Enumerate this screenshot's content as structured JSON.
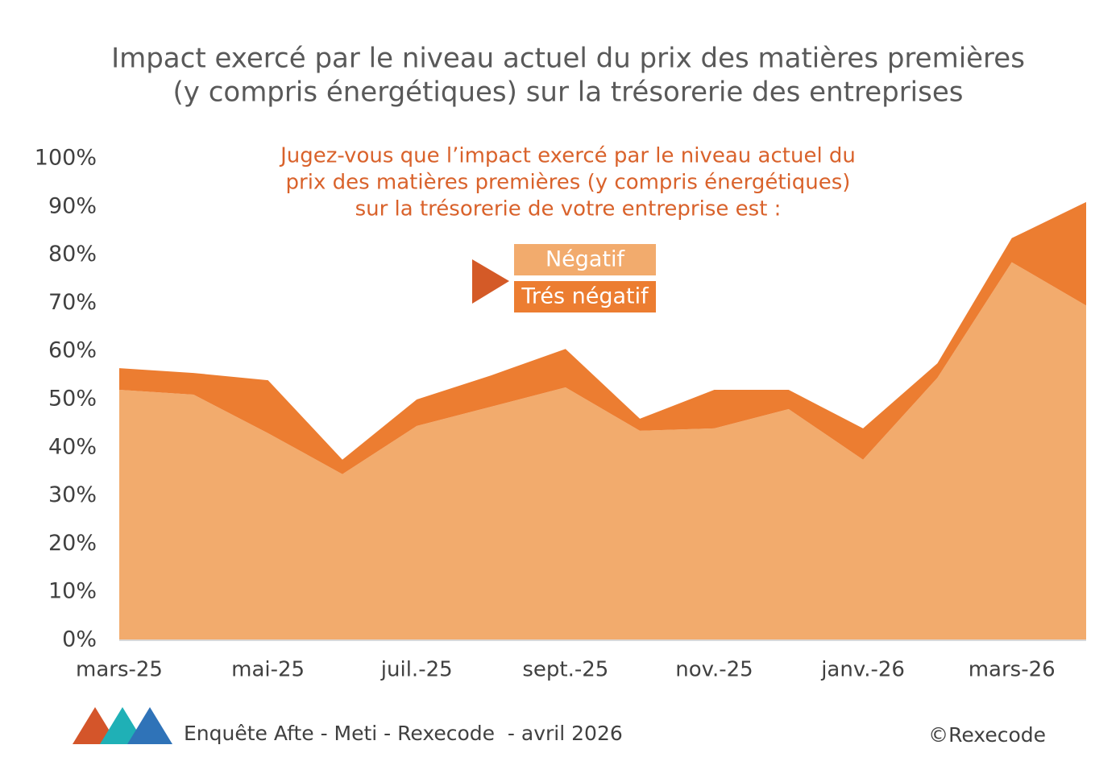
{
  "chart_data": {
    "type": "stacked_area",
    "title": [
      "Impact exercé par le niveau actuel du prix des matières premières",
      "(y compris énergétiques) sur la trésorerie des entreprises"
    ],
    "annotation": [
      "Jugez-vous que l’impact exercé par le niveau actuel du",
      "prix des matières premières (y compris énergétiques)",
      "sur la trésorerie de votre entreprise est :"
    ],
    "categories": [
      "mars-25",
      null,
      "mai-25",
      null,
      "juil.-25",
      null,
      "sept.-25",
      null,
      "nov.-25",
      null,
      "janv.-26",
      null,
      "mars-26",
      null
    ],
    "series": [
      {
        "name": "Négatif",
        "color": "#f2ab6d",
        "values": [
          52,
          51,
          43,
          34.5,
          44.5,
          48.5,
          52.5,
          43.5,
          44,
          48,
          37.5,
          54.5,
          78.5,
          69.5
        ]
      },
      {
        "name": "Trés négatif",
        "color": "#ec7d31",
        "values": [
          4.5,
          4.5,
          11,
          3,
          5.5,
          6.5,
          8,
          2.5,
          8,
          4,
          6.5,
          3,
          5,
          21.5
        ]
      }
    ],
    "ylim": [
      0,
      100
    ],
    "yticks": [
      {
        "value": 0,
        "label": "0%"
      },
      {
        "value": 10,
        "label": "10%"
      },
      {
        "value": 20,
        "label": "20%"
      },
      {
        "value": 30,
        "label": "30%"
      },
      {
        "value": 40,
        "label": "40%"
      },
      {
        "value": 50,
        "label": "50%"
      },
      {
        "value": 60,
        "label": "60%"
      },
      {
        "value": 70,
        "label": "70%"
      },
      {
        "value": 80,
        "label": "80%"
      },
      {
        "value": 90,
        "label": "90%"
      },
      {
        "value": 100,
        "label": "100%"
      }
    ],
    "grid": false,
    "source": "Enquête Afte - Meti - Rexecode  - avril 2026",
    "copyright": "©Rexecode"
  }
}
